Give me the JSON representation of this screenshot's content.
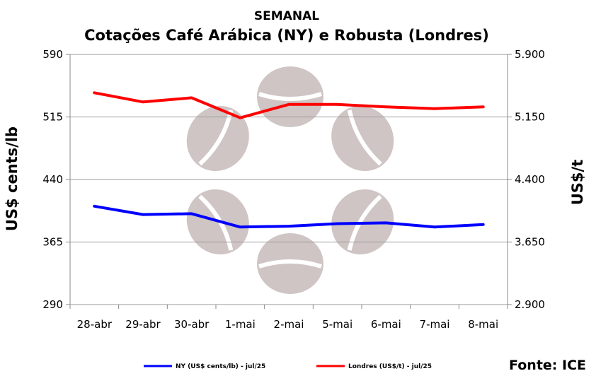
{
  "chart_data": {
    "type": "line",
    "title": "SEMANAL",
    "subtitle": "Cotações Café Arábica (NY) e Robusta (Londres)",
    "categories": [
      "28-abr",
      "29-abr",
      "30-abr",
      "1-mai",
      "2-mai",
      "5-mai",
      "6-mai",
      "7-mai",
      "8-mai"
    ],
    "ylabel_left": "US$ cents/lb",
    "ylabel_right": "US$/t",
    "ylim_left": [
      290,
      590
    ],
    "ylim_right": [
      2900,
      5900
    ],
    "yticks_left": [
      "290",
      "365",
      "440",
      "515",
      "590"
    ],
    "yticks_right": [
      "2.900",
      "3.650",
      "4.400",
      "5.150",
      "5.900"
    ],
    "grid": "horizontal",
    "legend_position": "bottom",
    "series": [
      {
        "name": "NY (US$ cents/lb) - jul/25",
        "axis": "left",
        "color": "#0000ff",
        "values": [
          408,
          398,
          399,
          383,
          384,
          387,
          388,
          383,
          386
        ]
      },
      {
        "name": "Londres (US$/t) - jul/25",
        "axis": "right",
        "color": "#ff0000",
        "values": [
          5440,
          5330,
          5380,
          5140,
          5300,
          5300,
          5270,
          5250,
          5270
        ]
      }
    ],
    "source": "Fonte: ICE"
  }
}
